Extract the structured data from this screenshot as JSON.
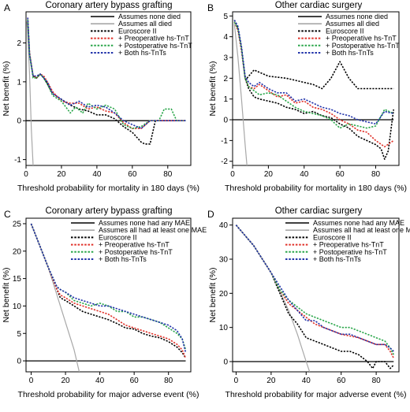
{
  "chart_data": [
    {
      "panel": "A",
      "type": "line",
      "title": "Coronary artery bypass grafting",
      "xlabel": "Threshold probability for mortality in 180 days (%)",
      "ylabel": "Net benefit (%)",
      "xlim": [
        0,
        93
      ],
      "ylim": [
        -1.15,
        2.8
      ],
      "xticks": [
        0,
        20,
        40,
        60,
        80
      ],
      "yticks": [
        -1,
        0,
        1,
        2
      ],
      "legend_position": "top-right",
      "series": [
        {
          "name": "Assumes none died",
          "color": "#000000",
          "style": "solid",
          "width": 1.3,
          "x": [
            0,
            90
          ],
          "y": [
            0,
            0
          ]
        },
        {
          "name": "Assumes all died",
          "color": "#a8a8a8",
          "style": "solid",
          "width": 1.2,
          "x": [
            0.5,
            1,
            2,
            3,
            4
          ],
          "y": [
            2.55,
            2.2,
            1.2,
            -0.2,
            -1.15
          ]
        },
        {
          "name": "Euroscore II",
          "color": "#000000",
          "style": "dotted",
          "x": [
            1,
            2,
            4,
            6,
            8,
            10,
            12,
            15,
            20,
            25,
            30,
            35,
            40,
            45,
            50,
            55,
            60,
            65,
            67,
            70,
            73,
            75,
            80,
            85,
            90
          ],
          "y": [
            2.6,
            1.7,
            1.15,
            1.1,
            1.2,
            1.1,
            0.95,
            0.7,
            0.55,
            0.4,
            0.3,
            0.25,
            0.15,
            0.15,
            0.05,
            -0.15,
            -0.3,
            -0.55,
            -0.6,
            -0.6,
            0.0,
            0.0,
            0.0,
            0.0,
            0.0
          ]
        },
        {
          "name": "+ Preoperative hs-TnT",
          "color": "#e0322a",
          "style": "dotted",
          "x": [
            1,
            2,
            4,
            6,
            8,
            10,
            12,
            15,
            20,
            25,
            30,
            35,
            40,
            45,
            50,
            55,
            60,
            65,
            70,
            75,
            80,
            85,
            90
          ],
          "y": [
            2.65,
            1.75,
            1.15,
            1.1,
            1.2,
            1.15,
            1.0,
            0.75,
            0.5,
            0.45,
            0.45,
            0.3,
            0.35,
            0.25,
            0.2,
            -0.05,
            -0.2,
            -0.2,
            0.0,
            0.0,
            0.0,
            0.0,
            0.0
          ]
        },
        {
          "name": "+ Postoperative hs-TnT",
          "color": "#2aa64a",
          "style": "dotted",
          "x": [
            1,
            2,
            4,
            6,
            8,
            10,
            12,
            15,
            20,
            25,
            28,
            32,
            35,
            40,
            45,
            50,
            55,
            60,
            65,
            70,
            75,
            78,
            82,
            85,
            90
          ],
          "y": [
            2.6,
            1.7,
            1.1,
            1.1,
            1.2,
            1.1,
            0.95,
            0.65,
            0.5,
            0.2,
            0.35,
            0.2,
            0.45,
            0.3,
            0.4,
            0.3,
            -0.1,
            -0.2,
            -0.15,
            0.0,
            0.0,
            0.3,
            0.3,
            0.0,
            0.0
          ]
        },
        {
          "name": "+ Both hs-TnTs",
          "color": "#2233aa",
          "style": "dotted",
          "x": [
            1,
            2,
            4,
            6,
            8,
            10,
            12,
            15,
            20,
            25,
            30,
            35,
            40,
            45,
            50,
            55,
            60,
            65,
            70,
            75,
            80,
            85,
            90
          ],
          "y": [
            2.65,
            1.7,
            1.15,
            1.15,
            1.2,
            1.1,
            1.0,
            0.7,
            0.55,
            0.4,
            0.5,
            0.35,
            0.4,
            0.35,
            0.2,
            0.0,
            -0.1,
            -0.2,
            0.0,
            0.0,
            0.0,
            0.0,
            0.0
          ]
        }
      ]
    },
    {
      "panel": "B",
      "type": "line",
      "title": "Other cardiac surgery",
      "xlabel": "Threshold probability for mortality in 180 days (%)",
      "ylabel": "Net benefit (%)",
      "xlim": [
        0,
        93
      ],
      "ylim": [
        -2.2,
        5.2
      ],
      "xticks": [
        0,
        20,
        40,
        60,
        80
      ],
      "yticks": [
        -2,
        -1,
        0,
        1,
        2,
        3,
        4,
        5
      ],
      "legend_position": "top-right",
      "series": [
        {
          "name": "Assumes none died",
          "color": "#000000",
          "style": "solid",
          "width": 1.3,
          "x": [
            0,
            90
          ],
          "y": [
            0,
            0
          ]
        },
        {
          "name": "Assumes all died",
          "color": "#a8a8a8",
          "style": "solid",
          "width": 1.2,
          "x": [
            1,
            3,
            5,
            7,
            8
          ],
          "y": [
            4.6,
            3.0,
            1.0,
            -1.2,
            -2.2
          ]
        },
        {
          "name": "Euroscore II",
          "color": "#000000",
          "style": "dotted",
          "x": [
            1,
            3,
            5,
            7,
            9,
            12,
            15,
            20,
            25,
            30,
            35,
            40,
            45,
            50,
            55,
            60,
            65,
            70,
            75,
            80,
            83,
            85,
            87,
            90
          ],
          "y": [
            4.8,
            4.4,
            3.5,
            2.0,
            1.5,
            1.1,
            1.0,
            0.9,
            0.8,
            0.6,
            0.5,
            0.3,
            0.4,
            0.2,
            0.1,
            -0.2,
            -0.4,
            -0.8,
            -1.0,
            -1.2,
            -1.4,
            -1.9,
            -1.5,
            0.5
          ]
        },
        {
          "name": "+ Preoperative hs-TnT",
          "color": "#e0322a",
          "style": "dotted",
          "x": [
            1,
            3,
            5,
            7,
            9,
            12,
            15,
            20,
            25,
            30,
            35,
            40,
            45,
            50,
            55,
            60,
            65,
            70,
            75,
            80,
            85,
            90
          ],
          "y": [
            4.7,
            4.3,
            3.3,
            2.0,
            1.6,
            1.5,
            1.7,
            1.4,
            1.1,
            1.2,
            0.8,
            0.9,
            0.6,
            0.5,
            0.3,
            0.0,
            -0.2,
            -0.5,
            -0.6,
            -1.0,
            -1.3,
            -1.0
          ]
        },
        {
          "name": "+ Postoperative hs-TnT",
          "color": "#2aa64a",
          "style": "dotted",
          "x": [
            1,
            3,
            5,
            7,
            9,
            12,
            15,
            20,
            25,
            30,
            35,
            40,
            45,
            50,
            55,
            60,
            65,
            70,
            75,
            80,
            85,
            90
          ],
          "y": [
            4.7,
            4.4,
            3.4,
            2.0,
            1.6,
            1.4,
            1.2,
            1.3,
            1.2,
            0.9,
            0.6,
            0.4,
            0.3,
            0.2,
            0.0,
            -0.4,
            -0.2,
            -0.3,
            -0.4,
            -0.3,
            0.5,
            0.3
          ]
        },
        {
          "name": "+ Both hs-TnTs",
          "color": "#2233aa",
          "style": "dotted",
          "x": [
            1,
            3,
            5,
            7,
            9,
            12,
            15,
            20,
            25,
            30,
            35,
            40,
            45,
            50,
            55,
            60,
            65,
            70,
            75,
            80,
            85,
            90
          ],
          "y": [
            4.8,
            4.5,
            3.5,
            2.1,
            1.8,
            1.6,
            1.8,
            1.5,
            1.3,
            1.3,
            0.9,
            1.0,
            0.8,
            0.6,
            0.5,
            0.3,
            0.2,
            0.0,
            -0.1,
            -0.2,
            0.4,
            0.3
          ]
        },
        {
          "name": "Euroscore II (upper trace)",
          "color": "#000000",
          "style": "dotted",
          "legend": false,
          "x": [
            8,
            12,
            20,
            30,
            40,
            45,
            50,
            55,
            60,
            65,
            70,
            75,
            80,
            85,
            90
          ],
          "y": [
            2.0,
            2.4,
            2.1,
            2.0,
            1.8,
            1.7,
            1.5,
            2.0,
            2.8,
            2.0,
            1.5,
            1.5,
            1.5,
            1.5,
            1.5
          ]
        }
      ]
    },
    {
      "panel": "C",
      "type": "line",
      "title": "Coronary artery bypass grafting",
      "xlabel": "Threshold probability for major adverse event (%)",
      "ylabel": "Net benefit (%)",
      "xlim": [
        -3,
        93
      ],
      "ylim": [
        -2,
        26
      ],
      "xticks": [
        0,
        20,
        40,
        60,
        80
      ],
      "yticks": [
        0,
        5,
        10,
        15,
        20,
        25
      ],
      "legend_position": "top-right",
      "series": [
        {
          "name": "Assumes none had any MAE",
          "color": "#000000",
          "style": "solid",
          "width": 1.3,
          "x": [
            -3,
            90
          ],
          "y": [
            0,
            0
          ]
        },
        {
          "name": "Assumes all had at least one MAE",
          "color": "#a8a8a8",
          "style": "solid",
          "width": 1.2,
          "x": [
            0,
            5,
            10,
            15,
            20,
            25,
            28
          ],
          "y": [
            25,
            21,
            17,
            12,
            7,
            2,
            -2
          ]
        },
        {
          "name": "Euroscore II",
          "color": "#000000",
          "style": "dotted",
          "x": [
            0,
            5,
            10,
            15,
            17,
            20,
            25,
            30,
            35,
            40,
            45,
            50,
            55,
            60,
            65,
            70,
            75,
            80,
            85,
            88,
            90
          ],
          "y": [
            25,
            21,
            17,
            13,
            11.5,
            11,
            10,
            9,
            8.5,
            8.0,
            7.5,
            6.8,
            6.0,
            5.8,
            5.0,
            4.5,
            4.2,
            3.5,
            2.5,
            1.5,
            0.5
          ]
        },
        {
          "name": "+ Preoperative hs-TnT",
          "color": "#e0322a",
          "style": "dotted",
          "x": [
            0,
            5,
            10,
            15,
            17,
            20,
            25,
            30,
            35,
            40,
            45,
            50,
            55,
            60,
            65,
            70,
            75,
            80,
            85,
            88,
            90
          ],
          "y": [
            25,
            21,
            17,
            13,
            12,
            11.5,
            10.5,
            10,
            9.5,
            9.0,
            8.5,
            7.5,
            6.5,
            6.0,
            5.5,
            5.0,
            4.5,
            4.0,
            3.0,
            2.0,
            0.5
          ]
        },
        {
          "name": "+ Postoperative hs-TnT",
          "color": "#2aa64a",
          "style": "dotted",
          "x": [
            0,
            5,
            10,
            15,
            17,
            20,
            25,
            30,
            35,
            40,
            45,
            50,
            55,
            60,
            65,
            70,
            75,
            80,
            85,
            88,
            90
          ],
          "y": [
            25,
            21,
            17,
            13.5,
            13,
            12.5,
            11,
            10.5,
            10,
            10.5,
            10,
            9.0,
            9.0,
            8.0,
            8.0,
            7.5,
            7.0,
            6.0,
            5.0,
            4.0,
            2.0
          ]
        },
        {
          "name": "+ Both hs-TnTs",
          "color": "#2233aa",
          "style": "dotted",
          "x": [
            0,
            5,
            10,
            15,
            17,
            20,
            25,
            30,
            35,
            40,
            45,
            50,
            55,
            60,
            65,
            70,
            75,
            80,
            85,
            88,
            90
          ],
          "y": [
            25,
            21,
            17,
            13.5,
            13,
            12.5,
            11.5,
            11,
            10.5,
            10,
            10,
            9.5,
            9.0,
            8.5,
            8.0,
            7.5,
            7.0,
            6.5,
            5.5,
            4.0,
            1.5
          ]
        }
      ]
    },
    {
      "panel": "D",
      "type": "line",
      "title": "Other cardiac surgery",
      "xlabel": "Threshold probability for major adverse event (%)",
      "ylabel": "Net benefit (%)",
      "xlim": [
        -2,
        93
      ],
      "ylim": [
        -3,
        42
      ],
      "xticks": [
        0,
        20,
        40,
        60,
        80
      ],
      "yticks": [
        0,
        10,
        20,
        30,
        40
      ],
      "legend_position": "top-right",
      "series": [
        {
          "name": "Assumes none had any MAE",
          "color": "#000000",
          "style": "solid",
          "width": 1.3,
          "x": [
            -2,
            90
          ],
          "y": [
            0,
            0
          ]
        },
        {
          "name": "Assumes all had at least one MAE",
          "color": "#a8a8a8",
          "style": "solid",
          "width": 1.2,
          "x": [
            0,
            10,
            20,
            30,
            35,
            40,
            42
          ],
          "y": [
            40,
            34,
            26,
            15,
            8,
            0,
            -3
          ]
        },
        {
          "name": "Euroscore II",
          "color": "#000000",
          "style": "dotted",
          "x": [
            0,
            10,
            20,
            25,
            30,
            35,
            40,
            45,
            50,
            55,
            60,
            65,
            70,
            75,
            78,
            80,
            85,
            88,
            90
          ],
          "y": [
            40,
            34,
            26,
            20,
            14,
            11,
            7,
            6,
            5,
            4,
            3,
            3,
            2,
            0,
            -2,
            0,
            0,
            -2,
            -1
          ]
        },
        {
          "name": "+ Preoperative hs-TnT",
          "color": "#e0322a",
          "style": "dotted",
          "x": [
            0,
            10,
            20,
            25,
            30,
            35,
            40,
            45,
            50,
            55,
            60,
            65,
            70,
            75,
            80,
            85,
            88,
            90
          ],
          "y": [
            40,
            34,
            26,
            21,
            17,
            15,
            13,
            11,
            10,
            9,
            8,
            7.5,
            7,
            6,
            5,
            5,
            3,
            1
          ]
        },
        {
          "name": "+ Postoperative hs-TnT",
          "color": "#2aa64a",
          "style": "dotted",
          "x": [
            0,
            10,
            20,
            25,
            30,
            35,
            40,
            45,
            50,
            55,
            60,
            65,
            70,
            75,
            80,
            85,
            88,
            90
          ],
          "y": [
            40,
            34,
            26,
            21,
            18,
            16,
            14,
            13,
            12,
            11,
            10,
            10,
            9,
            8,
            7,
            6,
            4,
            2
          ]
        },
        {
          "name": "+ Both hs-TnTs",
          "color": "#2233aa",
          "style": "dotted",
          "x": [
            0,
            10,
            20,
            25,
            30,
            35,
            40,
            45,
            50,
            55,
            60,
            65,
            70,
            75,
            80,
            85,
            88,
            90
          ],
          "y": [
            40,
            34,
            26,
            22,
            18,
            15,
            12,
            12,
            10,
            9,
            8,
            8,
            7,
            6,
            5,
            5,
            4,
            3
          ]
        }
      ]
    }
  ]
}
